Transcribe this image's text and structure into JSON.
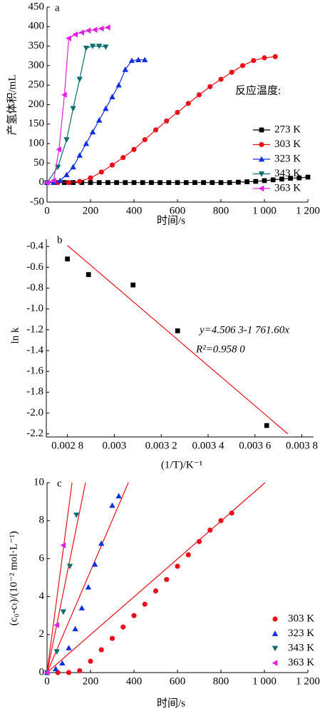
{
  "chart_data": [
    {
      "type": "line",
      "panel_label": "a",
      "x_label": "时间/s",
      "y_label": "产氢体积/mL",
      "legend_title": "反应温度:",
      "legend": "right",
      "xlim": [
        0,
        1200
      ],
      "xticks": [
        0,
        200,
        400,
        600,
        800,
        {
          "value": 1000,
          "label": "1 000"
        },
        {
          "value": 1200,
          "label": "1 200"
        }
      ],
      "ylim": [
        -50,
        450
      ],
      "yticks": [
        -50,
        0,
        50,
        100,
        150,
        200,
        250,
        300,
        350,
        400,
        450
      ],
      "series": [
        {
          "name": "273 K",
          "color": "#000000",
          "marker": "square",
          "x": [
            0,
            40,
            80,
            120,
            160,
            200,
            240,
            280,
            320,
            360,
            400,
            440,
            480,
            520,
            560,
            600,
            640,
            680,
            720,
            760,
            800,
            840,
            880,
            920,
            960,
            1000,
            1040,
            1080,
            1120,
            1160,
            1200
          ],
          "values": [
            0,
            0,
            0,
            0,
            0,
            0,
            0,
            0,
            0,
            0,
            0,
            0,
            0,
            0,
            0,
            0,
            0,
            0,
            0,
            0,
            0,
            0,
            1,
            2,
            3,
            5,
            7,
            9,
            11,
            12,
            14
          ]
        },
        {
          "name": "303 K",
          "color": "#e8101a",
          "marker": "circle",
          "x": [
            0,
            50,
            100,
            150,
            200,
            250,
            300,
            350,
            400,
            450,
            500,
            550,
            600,
            650,
            700,
            750,
            800,
            850,
            900,
            950,
            1000,
            1050
          ],
          "values": [
            0,
            0,
            0,
            3,
            12,
            27,
            45,
            64,
            85,
            110,
            135,
            158,
            180,
            203,
            225,
            246,
            265,
            283,
            300,
            313,
            320,
            323
          ]
        },
        {
          "name": "323 K",
          "color": "#1030e0",
          "marker": "tri-up",
          "x": [
            0,
            30,
            60,
            90,
            120,
            150,
            180,
            210,
            240,
            270,
            300,
            330,
            360,
            390,
            420,
            450
          ],
          "values": [
            0,
            0,
            5,
            20,
            40,
            70,
            100,
            130,
            160,
            190,
            220,
            250,
            290,
            313,
            315,
            315
          ]
        },
        {
          "name": "343 K",
          "color": "#0a6e6e",
          "marker": "tri-down",
          "x": [
            0,
            50,
            90,
            120,
            150,
            180,
            210,
            240,
            270
          ],
          "values": [
            0,
            40,
            110,
            190,
            265,
            345,
            350,
            350,
            348
          ]
        },
        {
          "name": "363 K",
          "color": "#e020e0",
          "marker": "tri-left",
          "x": [
            0,
            30,
            55,
            80,
            100,
            130,
            160,
            190,
            220,
            250,
            280
          ],
          "values": [
            0,
            5,
            85,
            225,
            370,
            380,
            385,
            390,
            392,
            395,
            398
          ]
        }
      ]
    },
    {
      "type": "scatter",
      "panel_label": "b",
      "x_label": "(1/T)/K⁻¹",
      "y_label": "ln k",
      "xlim": [
        0.00271,
        0.00385
      ],
      "xticks": [
        {
          "value": 0.0028,
          "label": "0.002 8"
        },
        {
          "value": 0.003,
          "label": "0.003"
        },
        {
          "value": 0.0032,
          "label": "0.003 2"
        },
        {
          "value": 0.0034,
          "label": "0.003 4"
        },
        {
          "value": 0.0036,
          "label": "0.003 6"
        },
        {
          "value": 0.0038,
          "label": "0.003 8"
        }
      ],
      "ylim": [
        -2.23,
        -0.33
      ],
      "yticks": [
        -0.4,
        -0.6,
        -0.8,
        {
          "value": -1,
          "label": "-1.0"
        },
        -1.2,
        -1.4,
        -1.6,
        -1.8,
        {
          "value": -2,
          "label": "-2.0"
        },
        -2.2
      ],
      "series": [
        {
          "color": "#000000",
          "marker": "square",
          "x": [
            0.0028,
            0.00289,
            0.00308,
            0.00327,
            0.00365
          ],
          "values": [
            -0.52,
            -0.67,
            -0.77,
            -1.21,
            -2.12
          ]
        }
      ],
      "fit": {
        "color": "#e8101a",
        "x": [
          0.0028,
          0.00374
        ],
        "values": [
          -0.39,
          -2.2
        ]
      },
      "annotations": [
        "y=4.506 3-1 761.60x",
        "R²=0.958 0"
      ]
    },
    {
      "type": "scatter",
      "panel_label": "c",
      "x_label": "时间/s",
      "y_label": "(c₀-cₜ)/(10⁻² mol·L⁻¹)",
      "legend": "lower right",
      "xlim": [
        0,
        1200
      ],
      "xticks": [
        0,
        200,
        400,
        600,
        800,
        {
          "value": 1000,
          "label": "1 000"
        },
        {
          "value": 1200,
          "label": "1 200"
        }
      ],
      "ylim": [
        0,
        10
      ],
      "yticks": [
        0,
        2,
        4,
        6,
        8,
        10
      ],
      "series": [
        {
          "name": "303 K",
          "color": "#e8101a",
          "marker": "circle",
          "x": [
            50,
            100,
            150,
            200,
            250,
            300,
            350,
            400,
            450,
            500,
            550,
            600,
            650,
            700,
            750,
            800,
            850
          ],
          "values": [
            0,
            0,
            0.1,
            0.6,
            1.2,
            1.8,
            2.4,
            3.0,
            3.6,
            4.3,
            4.9,
            5.6,
            6.2,
            6.9,
            7.5,
            8.0,
            8.4
          ],
          "fit": {
            "x": [
              0,
              1003
            ],
            "values": [
              0,
              10
            ]
          }
        },
        {
          "name": "323 K",
          "color": "#1030e0",
          "marker": "tri-up",
          "x": [
            0,
            40,
            70,
            100,
            130,
            160,
            190,
            220,
            250,
            300,
            330
          ],
          "values": [
            0,
            0.2,
            0.5,
            1.3,
            2.3,
            3.4,
            4.5,
            5.7,
            6.8,
            8.8,
            9.3
          ],
          "fit": {
            "x": [
              0,
              374
            ],
            "values": [
              0,
              10
            ]
          }
        },
        {
          "name": "343 K",
          "color": "#0a6e6e",
          "marker": "tri-down",
          "x": [
            0,
            45,
            75,
            105,
            135
          ],
          "values": [
            0,
            1.1,
            3.2,
            5.6,
            8.3
          ],
          "fit": {
            "x": [
              0,
              177
            ],
            "values": [
              0,
              10
            ]
          }
        },
        {
          "name": "363 K",
          "color": "#e020e0",
          "marker": "tri-left",
          "x": [
            0,
            45,
            75
          ],
          "values": [
            0,
            2.5,
            6.7
          ],
          "fit": {
            "x": [
              0,
              115
            ],
            "values": [
              0,
              10
            ]
          }
        }
      ]
    }
  ]
}
